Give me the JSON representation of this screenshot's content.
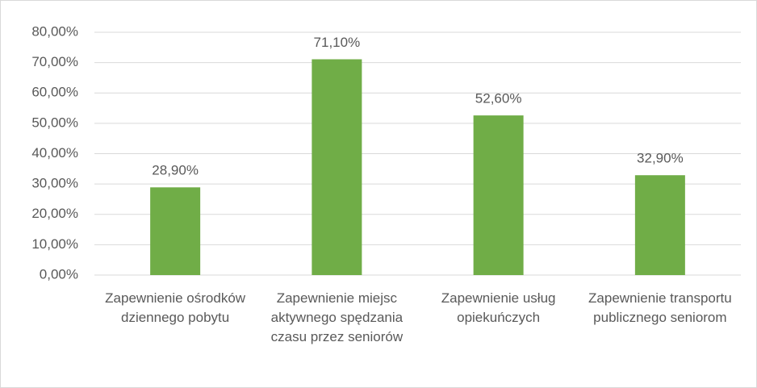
{
  "chart_data": {
    "type": "bar",
    "categories": [
      "Zapewnienie ośrodków dziennego pobytu",
      "Zapewnienie miejsc aktywnego spędzania czasu przez seniorów",
      "Zapewnienie usług opiekuńczych",
      "Zapewnienie transportu publicznego seniorom"
    ],
    "values": [
      28.9,
      71.1,
      52.6,
      32.9
    ],
    "value_labels": [
      "28,90%",
      "71,10%",
      "52,60%",
      "32,90%"
    ],
    "color": "#70ad47",
    "ylim": [
      0,
      80
    ],
    "yticks": [
      {
        "value": 0,
        "label": "0,00%"
      },
      {
        "value": 10,
        "label": "10,00%"
      },
      {
        "value": 20,
        "label": "20,00%"
      },
      {
        "value": 30,
        "label": "30,00%"
      },
      {
        "value": 40,
        "label": "40,00%"
      },
      {
        "value": 50,
        "label": "50,00%"
      },
      {
        "value": 60,
        "label": "60,00%"
      },
      {
        "value": 70,
        "label": "70,00%"
      },
      {
        "value": 80,
        "label": "80,00%"
      }
    ],
    "grid": true
  }
}
